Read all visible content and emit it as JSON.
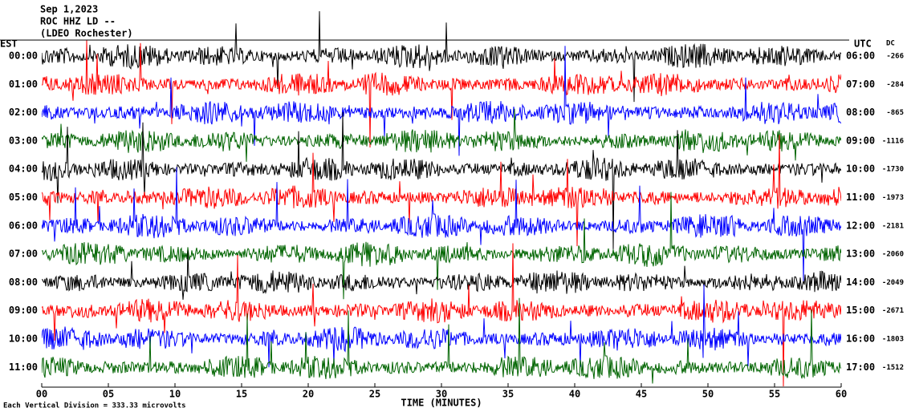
{
  "header": {
    "date": "Sep 1,2023",
    "station": "ROC HHZ LD --",
    "location": "(LDEO Rochester)"
  },
  "left_zone": "EST",
  "right_zone": "UTC",
  "dc_title": "DC",
  "rows": [
    {
      "est": "00:00",
      "utc": "06:00",
      "dc": "-266",
      "color": "#000000"
    },
    {
      "est": "01:00",
      "utc": "07:00",
      "dc": "-284",
      "color": "#ff0000"
    },
    {
      "est": "02:00",
      "utc": "08:00",
      "dc": "-865",
      "color": "#0000ff"
    },
    {
      "est": "03:00",
      "utc": "09:00",
      "dc": "-1116",
      "color": "#006400"
    },
    {
      "est": "04:00",
      "utc": "10:00",
      "dc": "-1730",
      "color": "#000000"
    },
    {
      "est": "05:00",
      "utc": "11:00",
      "dc": "-1973",
      "color": "#ff0000"
    },
    {
      "est": "06:00",
      "utc": "12:00",
      "dc": "-2181",
      "color": "#0000ff"
    },
    {
      "est": "07:00",
      "utc": "13:00",
      "dc": "-2060",
      "color": "#006400"
    },
    {
      "est": "08:00",
      "utc": "14:00",
      "dc": "-2049",
      "color": "#000000"
    },
    {
      "est": "09:00",
      "utc": "15:00",
      "dc": "-2671",
      "color": "#ff0000"
    },
    {
      "est": "10:00",
      "utc": "16:00",
      "dc": "-1803",
      "color": "#0000ff"
    },
    {
      "est": "11:00",
      "utc": "17:00",
      "dc": "-1512",
      "color": "#006400"
    }
  ],
  "x_axis": {
    "title": "TIME (MINUTES)",
    "lim": [
      0,
      60
    ],
    "ticks": [
      {
        "value": 0,
        "label": "00"
      },
      {
        "value": 5,
        "label": "05"
      },
      10,
      15,
      20,
      25,
      30,
      35,
      40,
      45,
      50,
      55,
      60
    ]
  },
  "footer": "Each Vertical Division = 333.33 microvolts"
}
